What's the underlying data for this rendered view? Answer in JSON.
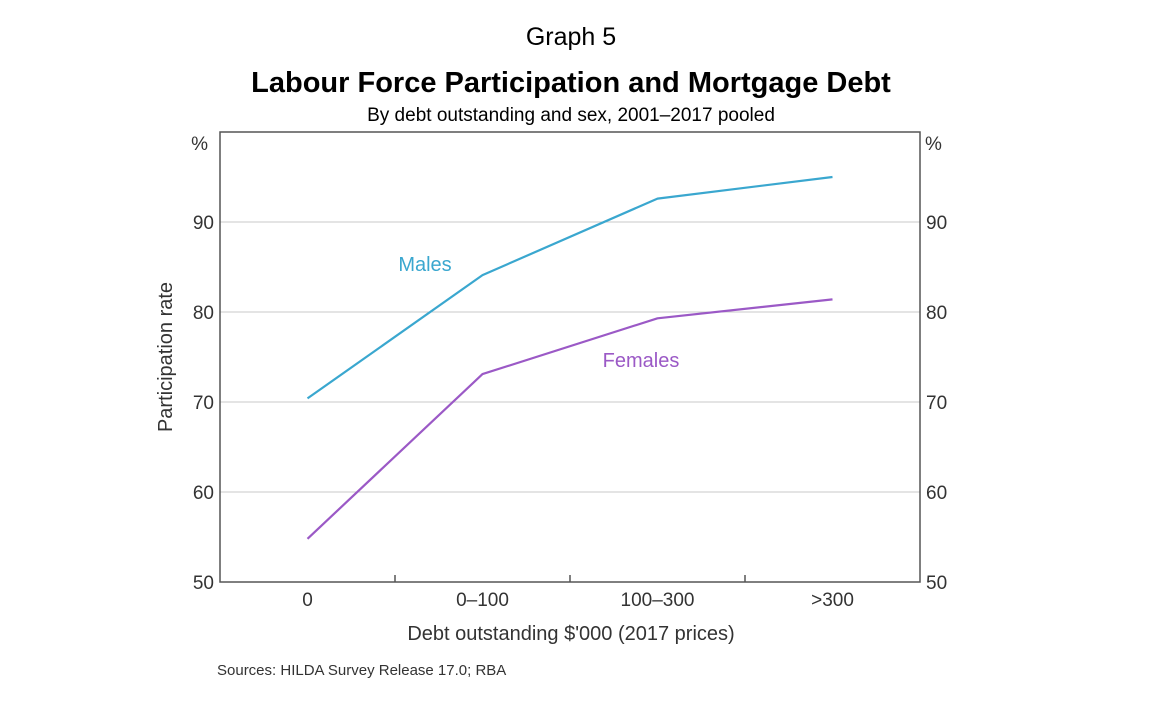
{
  "chart_data": {
    "type": "line",
    "graph_label": "Graph 5",
    "title": "Labour Force Participation and Mortgage Debt",
    "subtitle": "By debt outstanding and sex, 2001–2017 pooled",
    "categories": [
      "0",
      "0–100",
      "100–300",
      ">300"
    ],
    "xlabel": "Debt outstanding $'000 (2017 prices)",
    "ylabel": "Participation rate",
    "unit_left": "%",
    "unit_right": "%",
    "ylim": [
      50,
      100
    ],
    "yticks": [
      50,
      60,
      70,
      80,
      90
    ],
    "grid": true,
    "series": [
      {
        "name": "Males",
        "values": [
          70.4,
          84.1,
          92.6,
          95.0
        ],
        "color": "#3aa7cf"
      },
      {
        "name": "Females",
        "values": [
          54.8,
          73.1,
          79.3,
          81.4
        ],
        "color": "#9b59c6"
      }
    ],
    "source": "Sources: HILDA Survey Release 17.0; RBA"
  }
}
